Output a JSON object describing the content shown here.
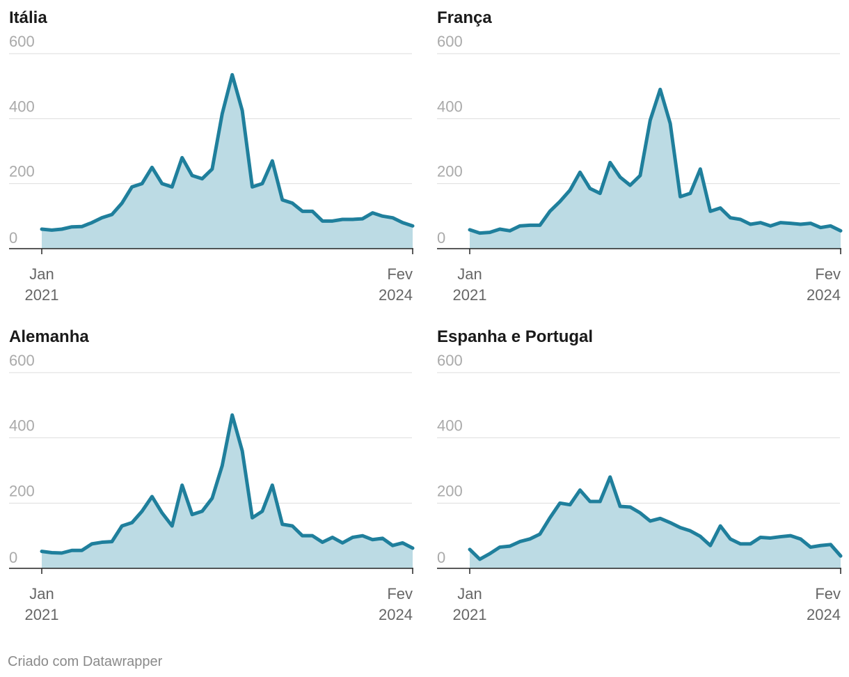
{
  "footer": "Criado com Datawrapper",
  "colors": {
    "line": "#1f7f9c",
    "area": "#bcdbe4",
    "grid": "#dddddd",
    "baseline": "#222222",
    "tick_label": "#aaaaaa"
  },
  "chart_data": [
    {
      "type": "area",
      "title": "Itália",
      "ylim": [
        0,
        600
      ],
      "yticks": [
        "0",
        "200",
        "400",
        "600"
      ],
      "xticks": [
        {
          "month": "Jan",
          "year": "2021"
        },
        {
          "month": "Fev",
          "year": "2024"
        }
      ],
      "x_start": "2021-01",
      "x_end": "2024-02",
      "grid": true,
      "values": [
        60,
        57,
        60,
        67,
        68,
        80,
        95,
        105,
        140,
        190,
        200,
        250,
        200,
        190,
        280,
        225,
        215,
        245,
        415,
        535,
        425,
        190,
        200,
        270,
        150,
        140,
        115,
        115,
        85,
        85,
        90,
        90,
        92,
        110,
        100,
        95,
        80,
        70
      ]
    },
    {
      "type": "area",
      "title": "França",
      "ylim": [
        0,
        600
      ],
      "yticks": [
        "0",
        "200",
        "400",
        "600"
      ],
      "xticks": [
        {
          "month": "Jan",
          "year": "2021"
        },
        {
          "month": "Fev",
          "year": "2024"
        }
      ],
      "x_start": "2021-01",
      "x_end": "2024-02",
      "grid": true,
      "values": [
        58,
        48,
        50,
        60,
        55,
        70,
        72,
        72,
        115,
        145,
        180,
        235,
        185,
        170,
        265,
        220,
        195,
        225,
        395,
        490,
        385,
        160,
        170,
        245,
        115,
        125,
        95,
        90,
        75,
        80,
        70,
        80,
        78,
        75,
        78,
        65,
        70,
        55
      ]
    },
    {
      "type": "area",
      "title": "Alemanha",
      "ylim": [
        0,
        600
      ],
      "yticks": [
        "0",
        "200",
        "400",
        "600"
      ],
      "xticks": [
        {
          "month": "Jan",
          "year": "2021"
        },
        {
          "month": "Fev",
          "year": "2024"
        }
      ],
      "x_start": "2021-01",
      "x_end": "2024-02",
      "grid": true,
      "values": [
        52,
        48,
        47,
        55,
        55,
        75,
        80,
        82,
        130,
        140,
        175,
        220,
        170,
        130,
        255,
        165,
        175,
        215,
        315,
        470,
        360,
        155,
        175,
        255,
        135,
        130,
        100,
        100,
        80,
        95,
        78,
        95,
        100,
        88,
        92,
        70,
        78,
        62
      ]
    },
    {
      "type": "area",
      "title": "Espanha e Portugal",
      "ylim": [
        0,
        600
      ],
      "yticks": [
        "0",
        "200",
        "400",
        "600"
      ],
      "xticks": [
        {
          "month": "Jan",
          "year": "2021"
        },
        {
          "month": "Fev",
          "year": "2024"
        }
      ],
      "x_start": "2021-01",
      "x_end": "2024-02",
      "grid": true,
      "values": [
        58,
        28,
        45,
        65,
        68,
        82,
        90,
        105,
        155,
        200,
        195,
        240,
        205,
        205,
        280,
        190,
        188,
        170,
        145,
        153,
        140,
        125,
        115,
        98,
        70,
        130,
        90,
        75,
        75,
        95,
        93,
        97,
        100,
        90,
        65,
        70,
        73,
        38
      ]
    }
  ]
}
